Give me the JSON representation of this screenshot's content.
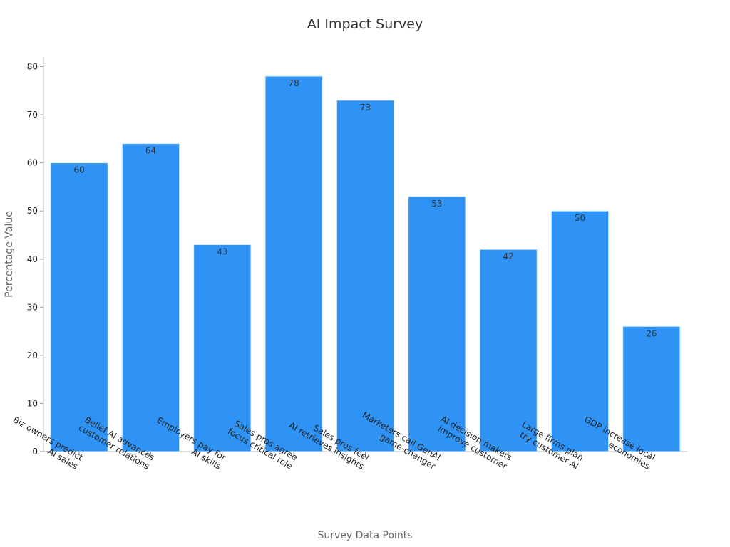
{
  "chart_data": {
    "type": "bar",
    "title": "AI Impact Survey",
    "xlabel": "Survey Data Points",
    "ylabel": "Percentage Value",
    "categories": [
      [
        "Biz owners predict",
        "AI sales"
      ],
      [
        "Belief AI advances",
        "customer relations"
      ],
      [
        "Employers pay for",
        "AI skills"
      ],
      [
        "Sales pros agree",
        "focus critical role"
      ],
      [
        "Sales pros feel",
        "AI retrieves insights"
      ],
      [
        "Marketers call GenAI",
        "game-changer"
      ],
      [
        "AI decision makers",
        "improve customer"
      ],
      [
        "Large firms plan",
        "try customer AI"
      ],
      [
        "GDP increase local",
        "economies"
      ]
    ],
    "values": [
      60,
      64,
      43,
      78,
      73,
      53,
      42,
      50,
      26
    ],
    "ylim": [
      0,
      82
    ],
    "yticks": [
      0,
      10,
      20,
      30,
      40,
      50,
      60,
      70,
      80
    ],
    "grid": false,
    "bar_color": "#2e93f5",
    "bar_edge_color": "#d8ecfd"
  }
}
